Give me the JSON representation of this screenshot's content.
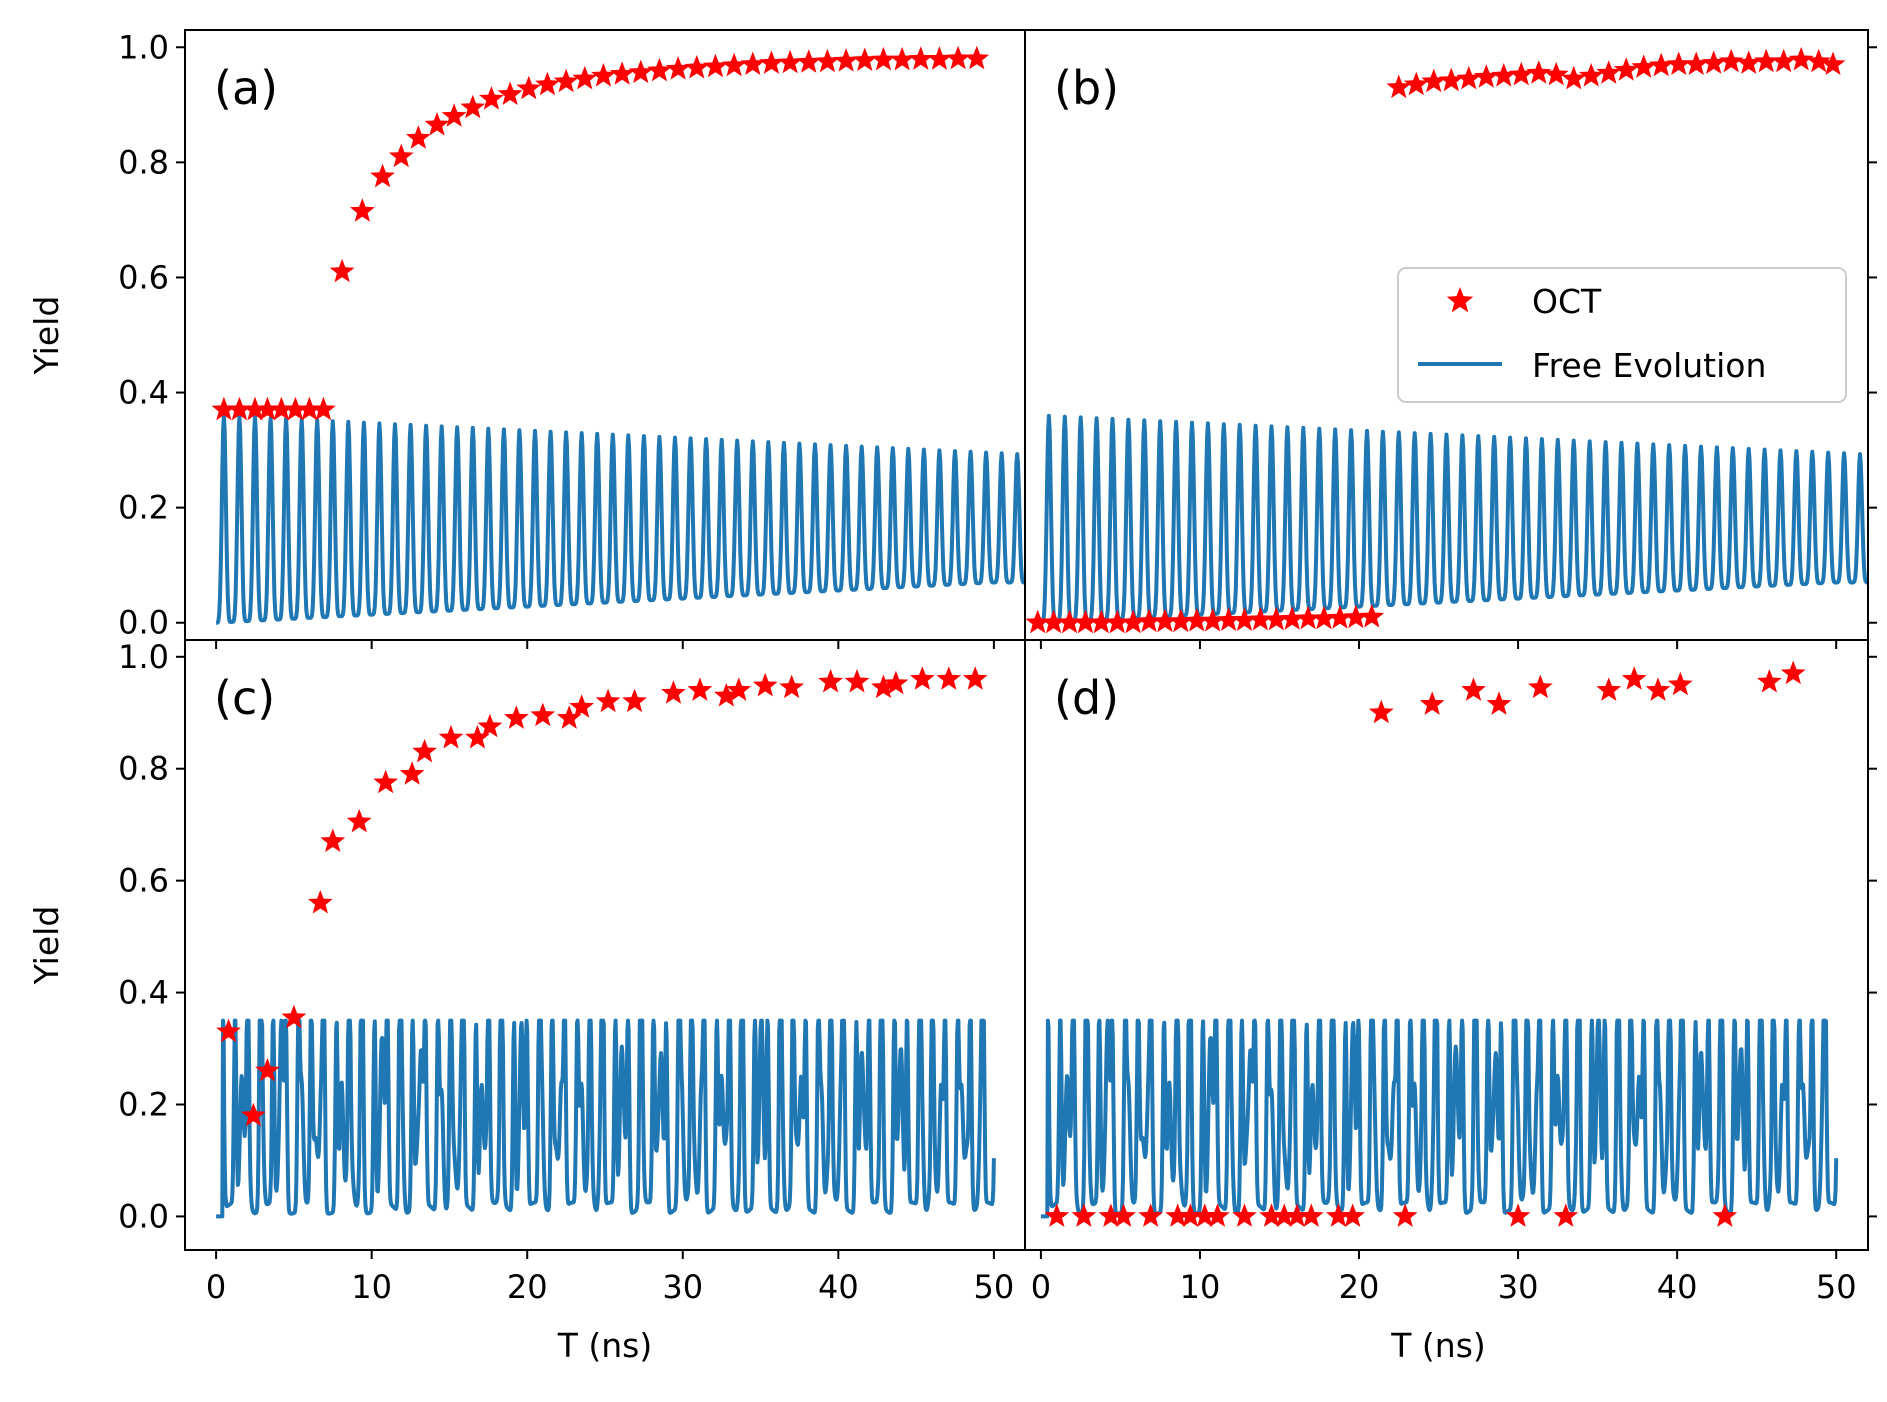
{
  "figure": {
    "legend": {
      "oct_label": "OCT",
      "free_label": "Free Evolution"
    },
    "colors": {
      "oct": "#ff0000",
      "free": "#1f77b4"
    },
    "xlabel": "T (ns)",
    "ylabel": "Yield"
  },
  "chart_data": [
    {
      "type": "scatter+line",
      "panel": "a",
      "label": "(a)",
      "xlim": [
        -2,
        52
      ],
      "ylim": [
        -0.03,
        1.03
      ],
      "xticks": [
        "0",
        "10",
        "20",
        "30",
        "40",
        "50"
      ],
      "yticks": [
        "0.0",
        "0.2",
        "0.4",
        "0.6",
        "0.8",
        "1.0"
      ],
      "ylabel": "Yield",
      "xlabel": "",
      "series": [
        {
          "name": "OCT",
          "points": [
            [
              0.5,
              0.37
            ],
            [
              1.5,
              0.37
            ],
            [
              2.5,
              0.37
            ],
            [
              3.3,
              0.37
            ],
            [
              4.2,
              0.37
            ],
            [
              5.1,
              0.37
            ],
            [
              6,
              0.37
            ],
            [
              6.9,
              0.37
            ],
            [
              8.1,
              0.61
            ],
            [
              9.4,
              0.715
            ],
            [
              10.7,
              0.775
            ],
            [
              11.9,
              0.81
            ],
            [
              13,
              0.842
            ],
            [
              14.2,
              0.865
            ],
            [
              15.3,
              0.88
            ],
            [
              16.5,
              0.895
            ],
            [
              17.7,
              0.91
            ],
            [
              18.9,
              0.918
            ],
            [
              20.1,
              0.928
            ],
            [
              21.3,
              0.935
            ],
            [
              22.5,
              0.94
            ],
            [
              23.7,
              0.945
            ],
            [
              24.9,
              0.95
            ],
            [
              26.1,
              0.953
            ],
            [
              27.3,
              0.956
            ],
            [
              28.5,
              0.959
            ],
            [
              29.7,
              0.962
            ],
            [
              30.9,
              0.964
            ],
            [
              32.1,
              0.966
            ],
            [
              33.3,
              0.968
            ],
            [
              34.5,
              0.97
            ],
            [
              35.7,
              0.972
            ],
            [
              36.9,
              0.973
            ],
            [
              38.1,
              0.974
            ],
            [
              39.3,
              0.975
            ],
            [
              40.5,
              0.976
            ],
            [
              41.7,
              0.977
            ],
            [
              42.9,
              0.978
            ],
            [
              44.1,
              0.978
            ],
            [
              45.3,
              0.979
            ],
            [
              46.5,
              0.979
            ],
            [
              47.7,
              0.98
            ],
            [
              48.9,
              0.98
            ]
          ]
        },
        {
          "name": "Free Evolution",
          "model": "regular",
          "peak_start": 0.36,
          "peak_end": 0.295,
          "trough_end": 0.07,
          "period_ns": 1.0,
          "t_start": 0,
          "t_end": 52
        }
      ]
    },
    {
      "type": "scatter+line",
      "panel": "b",
      "label": "(b)",
      "xlim": [
        -1,
        52
      ],
      "ylim": [
        -0.03,
        1.03
      ],
      "xticks": [
        "0",
        "10",
        "20",
        "30",
        "40",
        "50"
      ],
      "yticks": [],
      "xlabel": "",
      "series": [
        {
          "name": "OCT",
          "points": [
            [
              -0.2,
              0
            ],
            [
              0.8,
              0
            ],
            [
              1.8,
              0
            ],
            [
              2.8,
              0
            ],
            [
              3.8,
              0
            ],
            [
              4.8,
              0
            ],
            [
              5.8,
              0
            ],
            [
              6.8,
              0.002
            ],
            [
              7.8,
              0.002
            ],
            [
              8.8,
              0.002
            ],
            [
              9.8,
              0.003
            ],
            [
              10.8,
              0.003
            ],
            [
              11.8,
              0.004
            ],
            [
              12.8,
              0.004
            ],
            [
              13.8,
              0.005
            ],
            [
              14.8,
              0.005
            ],
            [
              15.8,
              0.006
            ],
            [
              16.8,
              0.007
            ],
            [
              17.8,
              0.007
            ],
            [
              18.8,
              0.008
            ],
            [
              19.8,
              0.009
            ],
            [
              20.8,
              0.01
            ],
            [
              22.5,
              0.93
            ],
            [
              23.6,
              0.935
            ],
            [
              24.7,
              0.94
            ],
            [
              25.8,
              0.942
            ],
            [
              26.9,
              0.945
            ],
            [
              28,
              0.948
            ],
            [
              29.1,
              0.95
            ],
            [
              30.2,
              0.952
            ],
            [
              31.3,
              0.955
            ],
            [
              32.4,
              0.952
            ],
            [
              33.5,
              0.945
            ],
            [
              34.6,
              0.95
            ],
            [
              35.7,
              0.955
            ],
            [
              36.8,
              0.96
            ],
            [
              37.9,
              0.965
            ],
            [
              39,
              0.968
            ],
            [
              40.1,
              0.97
            ],
            [
              41.2,
              0.97
            ],
            [
              42.3,
              0.972
            ],
            [
              43.4,
              0.975
            ],
            [
              44.5,
              0.972
            ],
            [
              45.6,
              0.975
            ],
            [
              46.7,
              0.975
            ],
            [
              47.8,
              0.978
            ],
            [
              48.9,
              0.975
            ],
            [
              49.8,
              0.97
            ]
          ]
        },
        {
          "name": "Free Evolution",
          "model": "regular",
          "peak_start": 0.36,
          "peak_end": 0.295,
          "trough_end": 0.07,
          "period_ns": 1.0,
          "t_start": 0,
          "t_end": 52
        }
      ]
    },
    {
      "type": "scatter+line",
      "panel": "c",
      "label": "(c)",
      "xlim": [
        -2,
        52
      ],
      "ylim": [
        -0.06,
        1.03
      ],
      "xticks": [
        "0",
        "10",
        "20",
        "30",
        "40",
        "50"
      ],
      "yticks": [
        "0.0",
        "0.2",
        "0.4",
        "0.6",
        "0.8",
        "1.0"
      ],
      "ylabel": "Yield",
      "xlabel": "T (ns)",
      "series": [
        {
          "name": "OCT",
          "points": [
            [
              0.8,
              0.33
            ],
            [
              2.4,
              0.18
            ],
            [
              3.3,
              0.26
            ],
            [
              5,
              0.355
            ],
            [
              6.7,
              0.56
            ],
            [
              7.5,
              0.67
            ],
            [
              9.2,
              0.705
            ],
            [
              10.9,
              0.775
            ],
            [
              12.6,
              0.79
            ],
            [
              13.4,
              0.83
            ],
            [
              15.1,
              0.855
            ],
            [
              16.8,
              0.855
            ],
            [
              17.6,
              0.875
            ],
            [
              19.3,
              0.89
            ],
            [
              21,
              0.895
            ],
            [
              22.7,
              0.89
            ],
            [
              23.5,
              0.91
            ],
            [
              25.2,
              0.92
            ],
            [
              26.9,
              0.92
            ],
            [
              29.4,
              0.935
            ],
            [
              31.1,
              0.94
            ],
            [
              32.8,
              0.93
            ],
            [
              33.6,
              0.94
            ],
            [
              35.3,
              0.948
            ],
            [
              37,
              0.945
            ],
            [
              39.5,
              0.955
            ],
            [
              41.2,
              0.955
            ],
            [
              42.9,
              0.945
            ],
            [
              43.7,
              0.952
            ],
            [
              45.4,
              0.96
            ],
            [
              47.1,
              0.96
            ],
            [
              48.8,
              0.96
            ]
          ]
        },
        {
          "name": "Free Evolution",
          "model": "irregular",
          "t_start": 0,
          "t_end": 50
        }
      ]
    },
    {
      "type": "scatter+line",
      "panel": "d",
      "label": "(d)",
      "xlim": [
        -1,
        52
      ],
      "ylim": [
        -0.06,
        1.03
      ],
      "xticks": [
        "0",
        "10",
        "20",
        "30",
        "40",
        "50"
      ],
      "yticks": [],
      "xlabel": "T (ns)",
      "series": [
        {
          "name": "OCT",
          "points": [
            [
              1,
              0
            ],
            [
              2.7,
              0
            ],
            [
              4.4,
              0
            ],
            [
              5.2,
              0
            ],
            [
              6.9,
              0
            ],
            [
              8.6,
              0
            ],
            [
              9.4,
              0
            ],
            [
              10.3,
              0
            ],
            [
              11.1,
              0
            ],
            [
              12.8,
              0
            ],
            [
              14.5,
              0
            ],
            [
              15.3,
              0
            ],
            [
              16.1,
              0
            ],
            [
              17,
              0
            ],
            [
              18.7,
              0
            ],
            [
              19.6,
              0
            ],
            [
              21.4,
              0.9
            ],
            [
              22.9,
              0
            ],
            [
              24.6,
              0.915
            ],
            [
              27.2,
              0.94
            ],
            [
              28.8,
              0.915
            ],
            [
              30,
              0
            ],
            [
              31.4,
              0.945
            ],
            [
              33,
              0
            ],
            [
              35.7,
              0.94
            ],
            [
              37.3,
              0.96
            ],
            [
              38.8,
              0.94
            ],
            [
              40.2,
              0.95
            ],
            [
              43,
              0
            ],
            [
              45.8,
              0.955
            ],
            [
              47.3,
              0.97
            ]
          ]
        },
        {
          "name": "Free Evolution",
          "model": "irregular",
          "t_start": 0,
          "t_end": 50
        }
      ]
    }
  ]
}
